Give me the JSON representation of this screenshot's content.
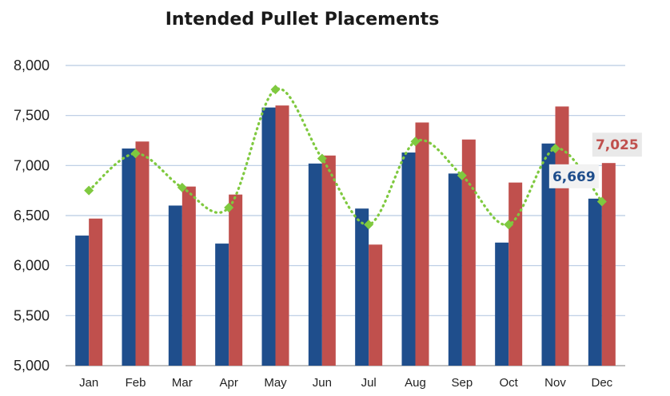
{
  "chart_data": {
    "type": "bar",
    "title": "Intended Pullet Placements",
    "xlabel": "",
    "ylabel": "",
    "ylim": [
      5000,
      8000
    ],
    "yticks": [
      5000,
      5500,
      6000,
      6500,
      7000,
      7500,
      8000
    ],
    "ytick_labels": [
      "5,000",
      "5,500",
      "6,000",
      "6,500",
      "7,000",
      "7,500",
      "8,000"
    ],
    "grid": true,
    "categories": [
      "Jan",
      "Feb",
      "Mar",
      "Apr",
      "May",
      "Jun",
      "Jul",
      "Aug",
      "Sep",
      "Oct",
      "Nov",
      "Dec"
    ],
    "series": [
      {
        "type": "bar",
        "color": "#1f4e8c",
        "values": [
          6300,
          7170,
          6600,
          6220,
          7580,
          7020,
          6570,
          7130,
          6920,
          6230,
          7220,
          6669
        ]
      },
      {
        "type": "bar",
        "color": "#c0504d",
        "values": [
          6470,
          7240,
          6790,
          6710,
          7600,
          7100,
          6210,
          7430,
          7260,
          6830,
          7590,
          7025
        ]
      },
      {
        "type": "line",
        "style": "dotted",
        "marker": "diamond",
        "color": "#7fc93f",
        "values": [
          6750,
          7120,
          6780,
          6580,
          7760,
          7070,
          6410,
          7240,
          6900,
          6410,
          7170,
          6640
        ]
      }
    ],
    "annotations": [
      {
        "text": "6,669",
        "series": 0,
        "category": "Dec",
        "color": "#1f4e8c"
      },
      {
        "text": "7,025",
        "series": 1,
        "category": "Dec",
        "color": "#c0504d"
      }
    ]
  }
}
